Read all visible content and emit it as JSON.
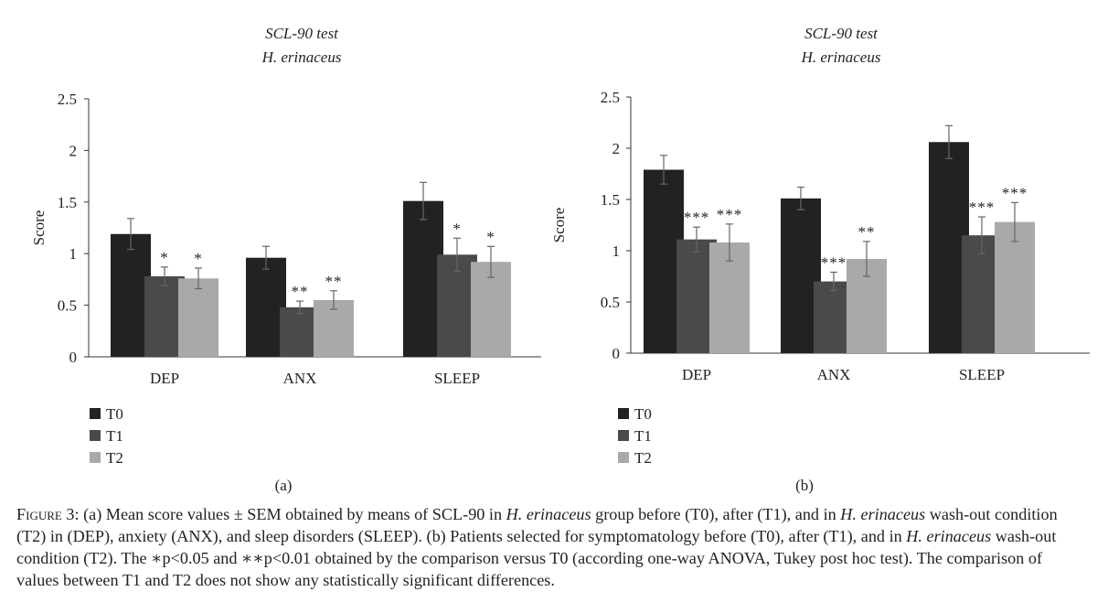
{
  "chart_data": [
    {
      "type": "bar",
      "title": "SCL-90 test",
      "subtitle": "H. erinaceus",
      "ylabel": "Score",
      "xlabel": "",
      "ylim": [
        0,
        2.5
      ],
      "yticks": [
        "0",
        "0.5",
        "1",
        "1.5",
        "2",
        "2.5"
      ],
      "ytick_values": [
        0,
        0.5,
        1,
        1.5,
        2,
        2.5
      ],
      "categories": [
        "DEP",
        "ANX",
        "SLEEP"
      ],
      "series": [
        {
          "name": "T0",
          "color": "#222222",
          "values": [
            1.19,
            0.96,
            1.51
          ],
          "errors": [
            0.15,
            0.11,
            0.18
          ],
          "sig": [
            "",
            "",
            ""
          ]
        },
        {
          "name": "T1",
          "color": "#4a4a4a",
          "values": [
            0.78,
            0.48,
            0.99
          ],
          "errors": [
            0.09,
            0.06,
            0.16
          ],
          "sig": [
            "*",
            "**",
            "*"
          ]
        },
        {
          "name": "T2",
          "color": "#a9a9a9",
          "values": [
            0.76,
            0.55,
            0.92
          ],
          "errors": [
            0.1,
            0.09,
            0.15
          ],
          "sig": [
            "*",
            "**",
            "*"
          ]
        }
      ],
      "legend_position": "bottom-left",
      "panel_label": "(a)"
    },
    {
      "type": "bar",
      "title": "SCL-90 test",
      "subtitle": "H. erinaceus",
      "ylabel": "Score",
      "xlabel": "",
      "ylim": [
        0,
        2.5
      ],
      "yticks": [
        "0",
        "0.5",
        "1",
        "1.5",
        "2",
        "2.5"
      ],
      "ytick_values": [
        0,
        0.5,
        1,
        1.5,
        2,
        2.5
      ],
      "categories": [
        "DEP",
        "ANX",
        "SLEEP"
      ],
      "series": [
        {
          "name": "T0",
          "color": "#222222",
          "values": [
            1.79,
            1.51,
            2.06
          ],
          "errors": [
            0.14,
            0.11,
            0.16
          ],
          "sig": [
            "",
            "",
            ""
          ]
        },
        {
          "name": "T1",
          "color": "#4a4a4a",
          "values": [
            1.11,
            0.7,
            1.15
          ],
          "errors": [
            0.12,
            0.09,
            0.18
          ],
          "sig": [
            "***",
            "***",
            "***"
          ]
        },
        {
          "name": "T2",
          "color": "#a9a9a9",
          "values": [
            1.08,
            0.92,
            1.28
          ],
          "errors": [
            0.18,
            0.17,
            0.19
          ],
          "sig": [
            "***",
            "**",
            "***"
          ]
        }
      ],
      "legend_position": "bottom-left",
      "panel_label": "(b)"
    }
  ],
  "caption": {
    "label": "Figure 3:",
    "parts": [
      {
        "t": " (a) Mean score values ± SEM obtained by means of SCL-90 in ",
        "i": false
      },
      {
        "t": "H. erinaceus",
        "i": true
      },
      {
        "t": " group before (T0), after (T1), and in ",
        "i": false
      },
      {
        "t": "H. erinaceus",
        "i": true
      },
      {
        "t": " wash-out condition (T2) in (DEP), anxiety (ANX), and sleep disorders (SLEEP). (b) Patients selected for symptomatology before (T0), after (T1), and in ",
        "i": false
      },
      {
        "t": "H. erinaceus",
        "i": true
      },
      {
        "t": " wash-out condition (T2). The ∗p<0.05 and ∗∗p<0.01 obtained by the comparison versus T0 (according one-way ANOVA, Tukey post hoc test). The comparison of values between T1 and T2 does not show any statistically significant differences.",
        "i": false
      }
    ]
  }
}
